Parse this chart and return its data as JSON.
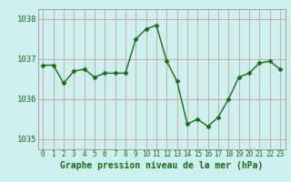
{
  "hours": [
    0,
    1,
    2,
    3,
    4,
    5,
    6,
    7,
    8,
    9,
    10,
    11,
    12,
    13,
    14,
    15,
    16,
    17,
    18,
    19,
    20,
    21,
    22,
    23
  ],
  "pressure": [
    1036.85,
    1036.85,
    1036.4,
    1036.7,
    1036.75,
    1036.55,
    1036.65,
    1036.65,
    1036.65,
    1037.5,
    1037.75,
    1037.85,
    1036.95,
    1036.45,
    1035.38,
    1035.5,
    1035.32,
    1035.55,
    1036.0,
    1036.55,
    1036.65,
    1036.9,
    1036.95,
    1036.75
  ],
  "line_color": "#1a6b1a",
  "marker": "D",
  "marker_size": 2.5,
  "bg_color": "#cdf0ee",
  "grid_color": "#c8a0a0",
  "text_color": "#1a6b1a",
  "xlabel": "Graphe pression niveau de la mer (hPa)",
  "ylim": [
    1034.75,
    1038.25
  ],
  "yticks": [
    1035,
    1036,
    1037,
    1038
  ],
  "xticks": [
    0,
    1,
    2,
    3,
    4,
    5,
    6,
    7,
    8,
    9,
    10,
    11,
    12,
    13,
    14,
    15,
    16,
    17,
    18,
    19,
    20,
    21,
    22,
    23
  ],
  "spine_color": "#888888",
  "xlabel_fontsize": 7,
  "ytick_fontsize": 6.5,
  "xtick_fontsize": 5.5
}
